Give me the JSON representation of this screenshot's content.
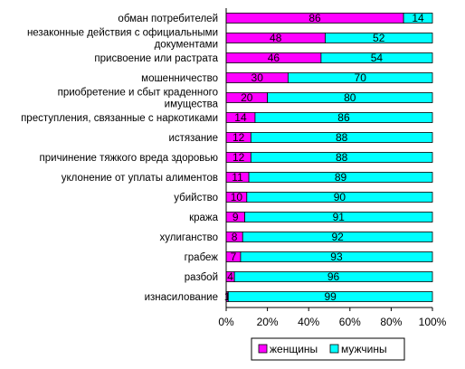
{
  "chart_data": {
    "type": "bar",
    "orientation": "horizontal",
    "stacked": "percent",
    "title": "",
    "xlabel": "",
    "ylabel": "",
    "xlim": [
      0,
      100
    ],
    "x_ticks": [
      "0%",
      "20%",
      "40%",
      "60%",
      "80%",
      "100%"
    ],
    "grid": false,
    "legend_position": "bottom",
    "categories": [
      [
        "обман потребителей"
      ],
      [
        "незаконные действия с официальными",
        "документами"
      ],
      [
        "присвоение или растрата"
      ],
      [
        "мошенничество"
      ],
      [
        "приобретение и сбыт краденного",
        "имущества"
      ],
      [
        "преступления, связанные с наркотиками"
      ],
      [
        "истязание"
      ],
      [
        "причинение тяжкого вреда здоровью"
      ],
      [
        "уклонение от уплаты алиментов"
      ],
      [
        "убийство"
      ],
      [
        "кража"
      ],
      [
        "хулиганство"
      ],
      [
        "грабеж"
      ],
      [
        "разбой"
      ],
      [
        "изнасилование"
      ]
    ],
    "series": [
      {
        "name": "женщины",
        "color": "#ff00ff",
        "values": [
          86,
          48,
          46,
          30,
          20,
          14,
          12,
          12,
          11,
          10,
          9,
          8,
          7,
          4,
          1
        ]
      },
      {
        "name": "мужчины",
        "color": "#00ffff",
        "values": [
          14,
          52,
          54,
          70,
          80,
          86,
          88,
          88,
          89,
          90,
          91,
          92,
          93,
          96,
          99
        ]
      }
    ]
  }
}
